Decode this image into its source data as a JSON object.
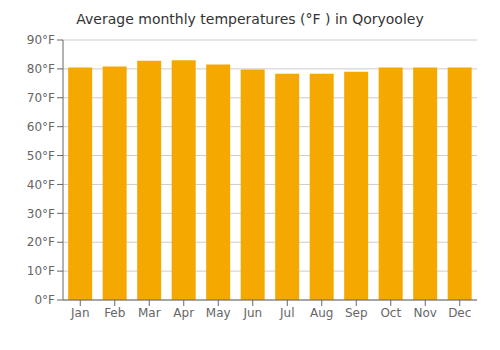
{
  "chart_data": {
    "type": "bar",
    "title": "Average monthly temperatures (°F ) in Qoryooley",
    "categories": [
      "Jan",
      "Feb",
      "Mar",
      "Apr",
      "May",
      "Jun",
      "Jul",
      "Aug",
      "Sep",
      "Oct",
      "Nov",
      "Dec"
    ],
    "values": [
      80.5,
      80.8,
      82.8,
      83.0,
      81.5,
      79.8,
      78.3,
      78.3,
      79.0,
      80.5,
      80.5,
      80.5
    ],
    "color": "#F5A800",
    "ylim": [
      0,
      90
    ],
    "yticks": [
      {
        "value": 0,
        "label": "0°F"
      },
      {
        "value": 10,
        "label": "10°F"
      },
      {
        "value": 20,
        "label": "20°F"
      },
      {
        "value": 30,
        "label": "30°F"
      },
      {
        "value": 40,
        "label": "40°F"
      },
      {
        "value": 50,
        "label": "50°F"
      },
      {
        "value": 60,
        "label": "60°F"
      },
      {
        "value": 70,
        "label": "70°F"
      },
      {
        "value": 80,
        "label": "80°F"
      },
      {
        "value": 90,
        "label": "90°F"
      }
    ],
    "grid": true
  }
}
